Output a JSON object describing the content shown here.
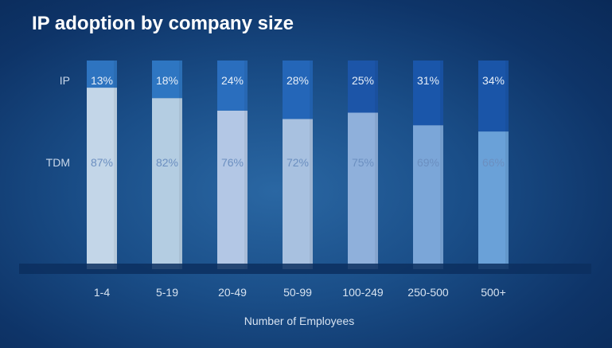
{
  "chart_data": {
    "type": "bar",
    "stacked": true,
    "title": "IP adoption by company size",
    "xlabel": "Number of Employees",
    "ylabel": "",
    "ylim": [
      0,
      100
    ],
    "categories": [
      "1-4",
      "5-19",
      "20-49",
      "50-99",
      "100-249",
      "250-500",
      "500+"
    ],
    "series": [
      {
        "name": "TDM",
        "values": [
          87,
          82,
          76,
          72,
          75,
          69,
          66
        ]
      },
      {
        "name": "IP",
        "values": [
          13,
          18,
          24,
          28,
          25,
          31,
          34
        ]
      }
    ],
    "data_labels": {
      "TDM": [
        "87%",
        "82%",
        "76%",
        "72%",
        "75%",
        "69%",
        "66%"
      ],
      "IP": [
        "13%",
        "18%",
        "24%",
        "28%",
        "25%",
        "31%",
        "34%"
      ]
    }
  },
  "colors": {
    "tdm_bars": [
      "#c3d6e8",
      "#b4cde2",
      "#b3c7e5",
      "#a8c1e0",
      "#8fb0db",
      "#7ba6d8",
      "#6aa1d8"
    ],
    "ip_bars": [
      "#2e74c0",
      "#2e76c2",
      "#2a6ebe",
      "#2466b8",
      "#1c55a8",
      "#1a56aa",
      "#1a55a8"
    ],
    "tdm_label": "#6b8fc0",
    "ip_label": "#e6eef8"
  }
}
